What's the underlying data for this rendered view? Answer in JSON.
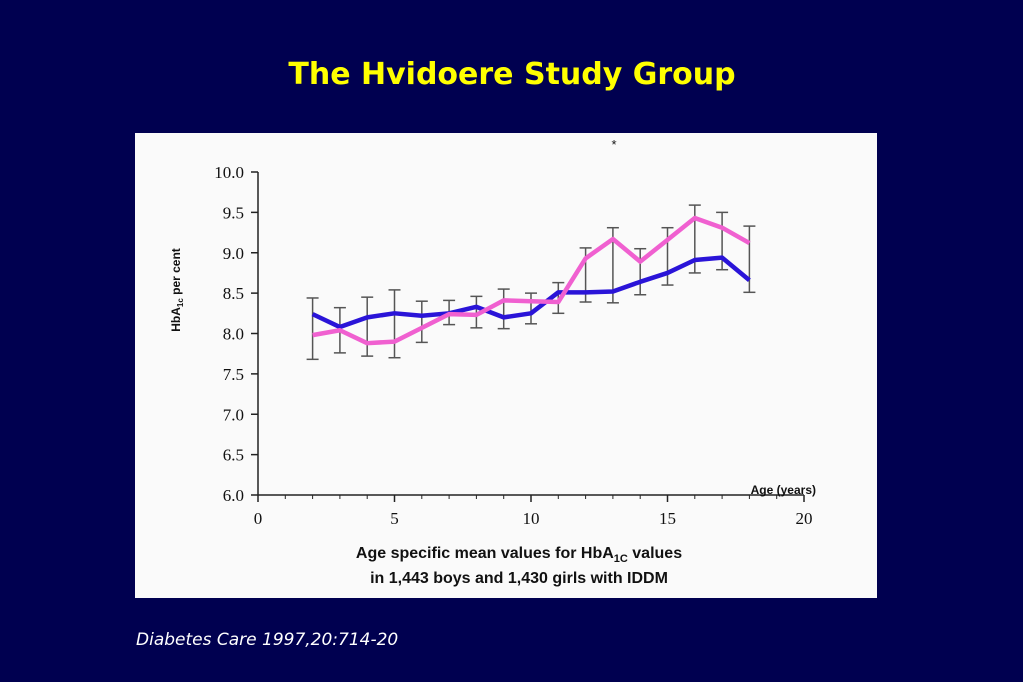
{
  "title": "The Hvidoere Study Group",
  "citation": "Diabetes Care 1997,20:714-20",
  "chart_data": {
    "type": "line",
    "y_label": {
      "main": "HbA",
      "sub": "1c",
      "rest": " per cent"
    },
    "x_label": "Age (years)",
    "caption": {
      "line1": "Age specific mean values for HbA",
      "line1_sub": "1C",
      "line1_rest": " values",
      "line2": "in 1,443 boys and 1,430 girls with IDDM"
    },
    "annotation": "*",
    "x": [
      2,
      3,
      4,
      5,
      6,
      7,
      8,
      9,
      10,
      11,
      12,
      13,
      14,
      15,
      16,
      17,
      18
    ],
    "series": [
      {
        "color": "#2a14d8",
        "values": [
          8.24,
          8.08,
          8.2,
          8.25,
          8.22,
          8.25,
          8.33,
          8.2,
          8.25,
          8.51,
          8.51,
          8.52,
          8.64,
          8.75,
          8.91,
          8.94,
          8.66
        ]
      },
      {
        "color": "#f060d0",
        "values": [
          7.98,
          8.04,
          7.88,
          7.9,
          8.07,
          8.24,
          8.23,
          8.41,
          8.4,
          8.39,
          8.93,
          9.17,
          8.89,
          9.16,
          9.43,
          9.31,
          9.12
        ]
      }
    ],
    "error_bars": {
      "low": [
        7.68,
        7.76,
        7.72,
        7.7,
        7.89,
        8.11,
        8.07,
        8.06,
        8.12,
        8.25,
        8.39,
        8.38,
        8.48,
        8.6,
        8.75,
        8.79,
        8.51
      ],
      "high": [
        8.44,
        8.32,
        8.45,
        8.54,
        8.4,
        8.41,
        8.46,
        8.55,
        8.5,
        8.63,
        9.06,
        9.31,
        9.05,
        9.31,
        9.59,
        9.5,
        9.33
      ]
    },
    "xlim": [
      0,
      20
    ],
    "xticks": [
      0,
      5,
      10,
      15,
      20
    ],
    "ylim": [
      6,
      10
    ],
    "yticks": [
      {
        "value": 6,
        "label": "6.0"
      },
      {
        "value": 6.5,
        "label": "6.5"
      },
      {
        "value": 7,
        "label": "7.0"
      },
      {
        "value": 7.5,
        "label": "7.5"
      },
      {
        "value": 8,
        "label": "8.0"
      },
      {
        "value": 8.5,
        "label": "8.5"
      },
      {
        "value": 9,
        "label": "9.0"
      },
      {
        "value": 9.5,
        "label": "9.5"
      },
      {
        "value": 10,
        "label": "10.0"
      }
    ]
  }
}
